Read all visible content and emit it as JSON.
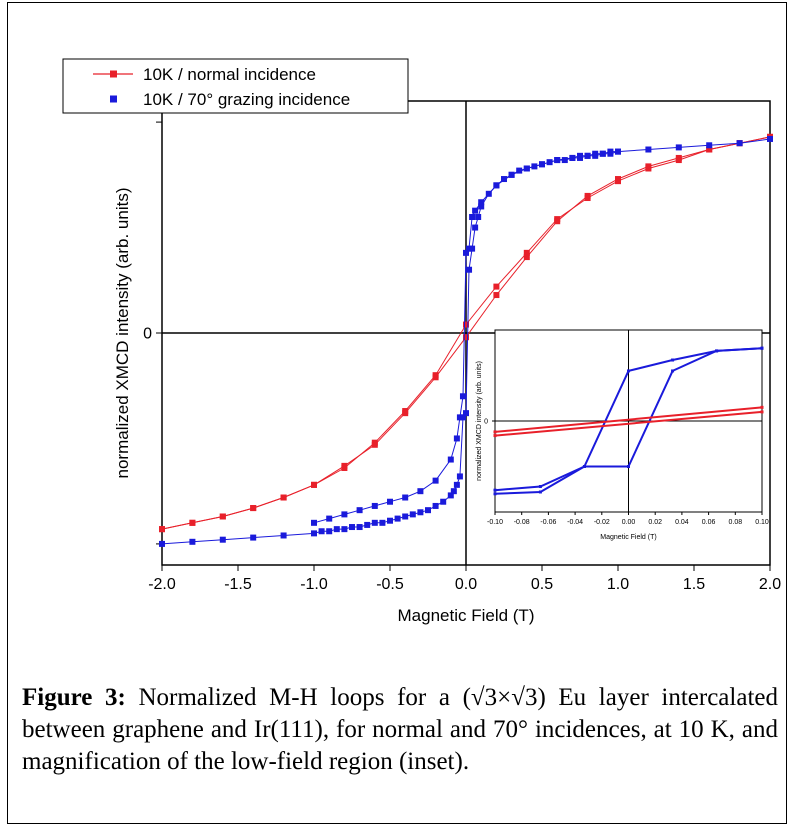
{
  "chart_data": [
    {
      "type": "scatter",
      "xlabel": "Magnetic Field (T)",
      "ylabel": "normalized XMCD intensity (arb. units)",
      "xlim": [
        -2.0,
        2.0
      ],
      "ylim": [
        -1.1,
        1.1
      ],
      "x_ticks": [
        "-2.0",
        "-1.5",
        "-1.0",
        "-0.5",
        "0.0",
        "0.5",
        "1.0",
        "1.5",
        "2.0"
      ],
      "y_ticks": [
        "0"
      ],
      "legend_position": "top-left",
      "series": [
        {
          "name": "10K / normal incidence",
          "color": "#e8202a",
          "marker": "square",
          "line": true,
          "branch_up": {
            "x": [
              -2.0,
              -1.8,
              -1.6,
              -1.4,
              -1.2,
              -1.0,
              -0.8,
              -0.6,
              -0.4,
              -0.2,
              0.0,
              0.2,
              0.4,
              0.6,
              0.8,
              1.0,
              1.2,
              1.4,
              1.6,
              1.8,
              2.0
            ],
            "y": [
              -0.93,
              -0.9,
              -0.87,
              -0.83,
              -0.78,
              -0.72,
              -0.63,
              -0.53,
              -0.38,
              -0.21,
              -0.02,
              0.18,
              0.36,
              0.53,
              0.65,
              0.73,
              0.79,
              0.83,
              0.87,
              0.9,
              0.93
            ]
          },
          "branch_down": {
            "x": [
              2.0,
              1.8,
              1.6,
              1.4,
              1.2,
              1.0,
              0.8,
              0.6,
              0.4,
              0.2,
              0.0,
              -0.2,
              -0.4,
              -0.6,
              -0.8,
              -1.0,
              -1.2,
              -1.4,
              -1.6,
              -1.8,
              -2.0
            ],
            "y": [
              0.93,
              0.9,
              0.87,
              0.82,
              0.78,
              0.72,
              0.64,
              0.54,
              0.38,
              0.22,
              0.04,
              -0.2,
              -0.37,
              -0.52,
              -0.64,
              -0.72,
              -0.78,
              -0.83,
              -0.87,
              -0.9,
              -0.93
            ]
          }
        },
        {
          "name": "10K / 70° grazing incidence",
          "color": "#1a1adb",
          "marker": "square",
          "line": true,
          "branch_up": {
            "x": [
              -2.0,
              -1.8,
              -1.6,
              -1.4,
              -1.2,
              -1.0,
              -0.95,
              -0.9,
              -0.85,
              -0.8,
              -0.75,
              -0.7,
              -0.65,
              -0.6,
              -0.55,
              -0.5,
              -0.45,
              -0.4,
              -0.35,
              -0.3,
              -0.25,
              -0.2,
              -0.15,
              -0.1,
              -0.08,
              -0.06,
              -0.04,
              -0.02,
              0.0,
              0.02,
              0.04,
              0.06,
              0.08,
              0.1,
              0.15,
              0.2,
              0.25,
              0.3,
              0.35,
              0.4,
              0.45,
              0.5,
              0.55,
              0.6,
              0.65,
              0.7,
              0.75,
              0.8,
              0.85,
              0.9,
              0.95,
              1.0
            ],
            "y": [
              -1.0,
              -0.99,
              -0.98,
              -0.97,
              -0.96,
              -0.95,
              -0.94,
              -0.94,
              -0.93,
              -0.93,
              -0.92,
              -0.92,
              -0.91,
              -0.9,
              -0.9,
              -0.89,
              -0.88,
              -0.87,
              -0.86,
              -0.85,
              -0.84,
              -0.82,
              -0.8,
              -0.77,
              -0.75,
              -0.72,
              -0.68,
              -0.4,
              -0.38,
              0.3,
              0.4,
              0.5,
              0.55,
              0.6,
              0.66,
              0.7,
              0.73,
              0.75,
              0.77,
              0.78,
              0.79,
              0.8,
              0.81,
              0.82,
              0.82,
              0.83,
              0.83,
              0.84,
              0.84,
              0.85,
              0.85,
              0.86
            ]
          },
          "branch_down": {
            "x": [
              2.0,
              1.8,
              1.6,
              1.4,
              1.2,
              1.0,
              0.95,
              0.9,
              0.85,
              0.8,
              0.75,
              0.7,
              0.6,
              0.5,
              0.4,
              0.3,
              0.2,
              0.1,
              0.06,
              0.04,
              0.02,
              0.0,
              -0.02,
              -0.04,
              -0.06,
              -0.1,
              -0.2,
              -0.3,
              -0.4,
              -0.5,
              -0.6,
              -0.7,
              -0.8,
              -0.9,
              -1.0
            ],
            "y": [
              0.92,
              0.9,
              0.89,
              0.88,
              0.87,
              0.86,
              0.86,
              0.85,
              0.85,
              0.84,
              0.84,
              0.83,
              0.82,
              0.8,
              0.78,
              0.75,
              0.7,
              0.62,
              0.58,
              0.55,
              0.4,
              0.38,
              -0.3,
              -0.4,
              -0.5,
              -0.6,
              -0.7,
              -0.75,
              -0.78,
              -0.8,
              -0.82,
              -0.84,
              -0.86,
              -0.88,
              -0.9
            ]
          }
        }
      ]
    },
    {
      "type": "line",
      "role": "inset",
      "xlabel": "Magnetic Field (T)",
      "ylabel": "normalized XMCD intensity (arb. units)",
      "xlim": [
        -0.1,
        0.1
      ],
      "ylim": [
        -1.0,
        1.0
      ],
      "x_ticks": [
        "-0.10",
        "-0.08",
        "-0.06",
        "-0.04",
        "-0.02",
        "0.00",
        "0.02",
        "0.04",
        "0.06",
        "0.08",
        "0.10"
      ],
      "y_ticks": [
        "0"
      ],
      "series": [
        {
          "name": "10K / 70° grazing incidence",
          "color": "#1a1adb",
          "branch_up": {
            "x": [
              -0.1,
              -0.066,
              -0.033,
              0.0,
              0.033,
              0.066,
              0.1
            ],
            "y": [
              -0.8,
              -0.78,
              -0.5,
              -0.5,
              0.55,
              0.77,
              0.8
            ]
          },
          "branch_down": {
            "x": [
              0.1,
              0.066,
              0.033,
              0.0,
              -0.033,
              -0.066,
              -0.1
            ],
            "y": [
              0.8,
              0.77,
              0.67,
              0.55,
              -0.5,
              -0.72,
              -0.76
            ]
          }
        },
        {
          "name": "10K / normal incidence",
          "color": "#e8202a",
          "branch_up": {
            "x": [
              -0.1,
              0.1
            ],
            "y": [
              -0.12,
              0.15
            ]
          },
          "branch_down": {
            "x": [
              0.1,
              -0.1
            ],
            "y": [
              0.1,
              -0.16
            ]
          }
        }
      ]
    }
  ],
  "caption": {
    "label": "Figure 3:",
    "text": " Normalized M-H loops for a (√3×√3) Eu layer intercalated between graphene and Ir(111), for normal and 70° incidences, at 10 K, and magnification of the low-field region (inset)."
  }
}
